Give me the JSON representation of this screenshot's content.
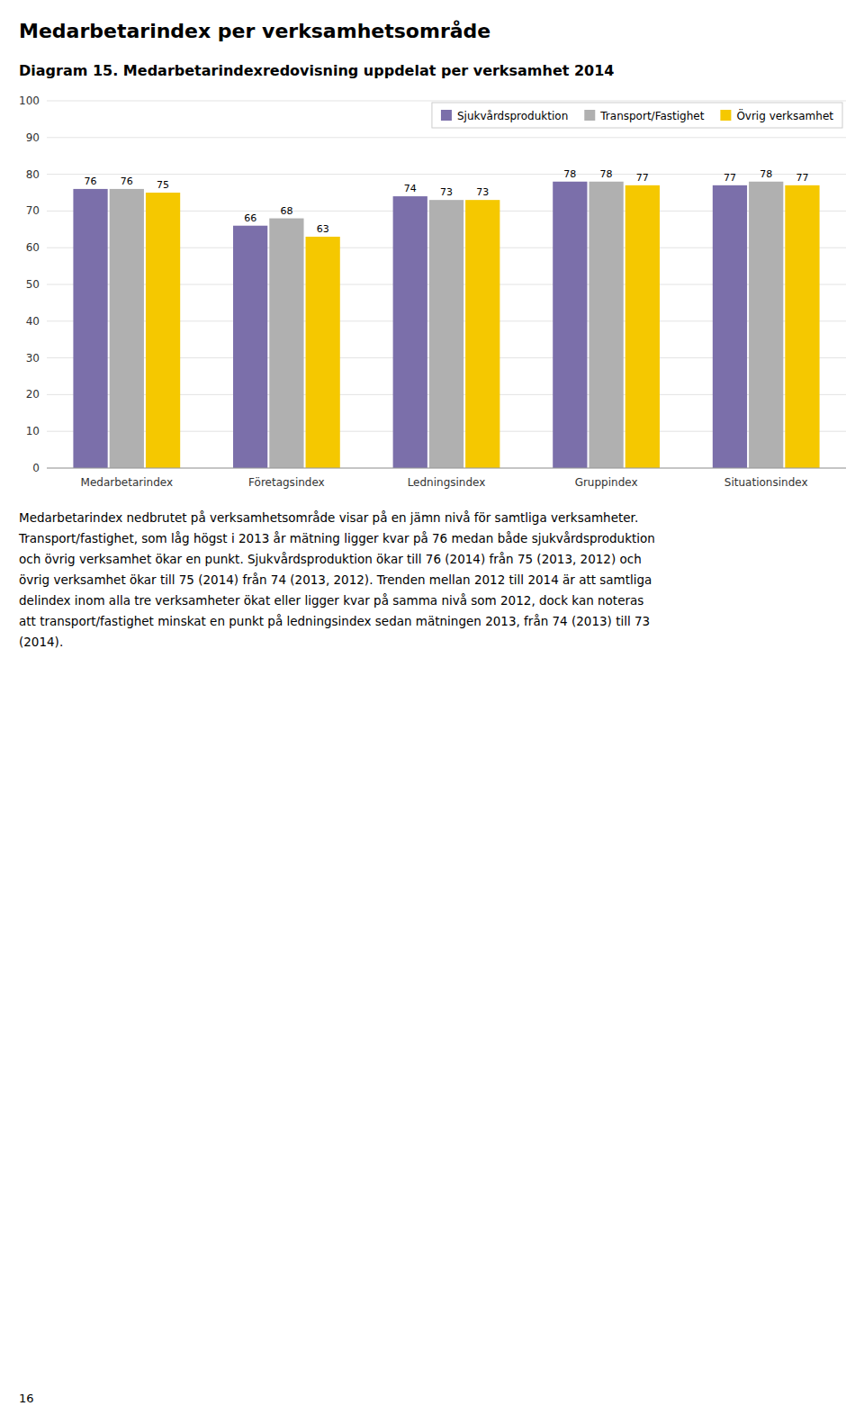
{
  "chart_data": {
    "type": "bar",
    "title": "Medarbetarindex per verksamhetsområde",
    "subtitle": "Diagram 15. Medarbetarindexredovisning uppdelat per verksamhet 2014",
    "categories": [
      "Medarbetarindex",
      "Företagsindex",
      "Ledningsindex",
      "Gruppindex",
      "Situationsindex"
    ],
    "series": [
      {
        "name": "Sjukvårdsproduktion",
        "values": [
          76,
          66,
          74,
          78,
          77
        ],
        "color": "#7b6faa"
      },
      {
        "name": "Transport/Fastighet",
        "values": [
          76,
          68,
          73,
          78,
          78
        ],
        "color": "#b0b0b0"
      },
      {
        "name": "Övrig verksamhet",
        "values": [
          75,
          63,
          73,
          77,
          77
        ],
        "color": "#f5c800"
      }
    ],
    "ylim": [
      0,
      100
    ],
    "yticks": [
      0,
      10,
      20,
      30,
      40,
      50,
      60,
      70,
      80,
      90,
      100
    ],
    "grid": true,
    "legend": "upper right",
    "data_labels": true
  },
  "body_lines": [
    "Medarbetarindex nedbrutet på verksamhetsområde visar på en jämn nivå för samtliga verksamheter.",
    "Transport/fastighet, som låg högst i 2013 år mätning ligger kvar på 76 medan både sjukvårdsproduktion",
    "och övrig verksamhet ökar en punkt. Sjukvårdsproduktion ökar till 76 (2014) från 75 (2013, 2012) och",
    "övrig verksamhet ökar till 75 (2014) från 74 (2013, 2012). Trenden mellan 2012 till 2014 är att samtliga",
    "delindex inom alla tre verksamheter ökat eller ligger kvar på samma nivå som 2012, dock kan noteras",
    "att transport/fastighet minskat en punkt på ledningsindex sedan mätningen 2013, från 74 (2013) till 73",
    "(2014)."
  ],
  "page_number": "16"
}
